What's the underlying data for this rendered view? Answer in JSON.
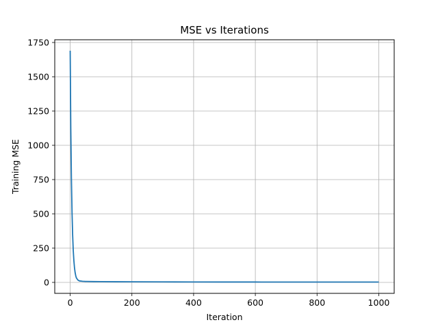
{
  "chart_data": {
    "type": "line",
    "title": "MSE vs Iterations",
    "xlabel": "Iteration",
    "ylabel": "Training MSE",
    "xlim": [
      -50,
      1050
    ],
    "ylim": [
      -80,
      1770
    ],
    "x_ticks": [
      0,
      200,
      400,
      600,
      800,
      1000
    ],
    "y_ticks": [
      0,
      250,
      500,
      750,
      1000,
      1250,
      1500,
      1750
    ],
    "grid": true,
    "series": [
      {
        "color": "#1f77b4",
        "x": [
          0,
          2,
          4,
          6,
          8,
          10,
          12,
          14,
          16,
          18,
          20,
          25,
          30,
          40,
          50,
          75,
          100,
          150,
          200,
          300,
          400,
          500,
          600,
          700,
          800,
          900,
          1000
        ],
        "y": [
          1690,
          1120,
          760,
          510,
          345,
          232,
          158,
          106,
          72,
          49,
          33,
          17,
          11,
          8,
          7,
          6,
          5.5,
          4.8,
          4.2,
          3.6,
          3.2,
          2.9,
          2.7,
          2.6,
          2.5,
          2.45,
          2.4
        ]
      }
    ]
  }
}
